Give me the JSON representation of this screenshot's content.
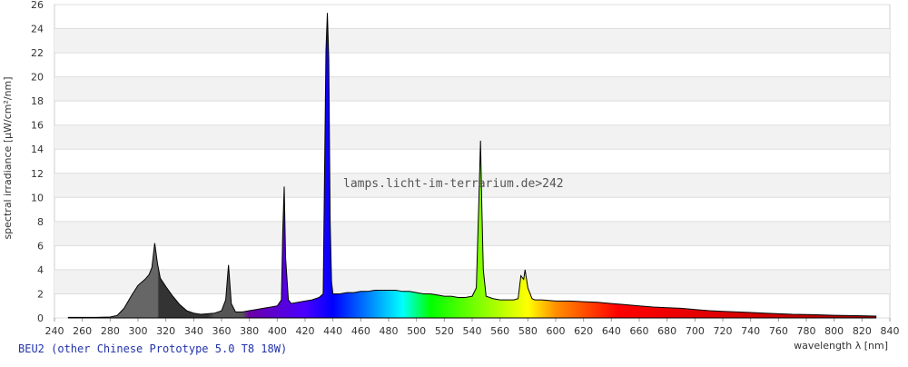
{
  "chart_data": {
    "type": "area",
    "title": "BEU2 (other Chinese Prototype 5.0 T8 18W)",
    "annotation": "lamps.licht-im-terrarium.de>242",
    "x_label": "wavelength λ [nm]",
    "y_label": "spectral irradiance [µW/cm²/nm]",
    "xlim": [
      240,
      840
    ],
    "ylim": [
      0,
      26
    ],
    "xticks": [
      240,
      260,
      280,
      300,
      320,
      340,
      360,
      380,
      400,
      420,
      440,
      460,
      480,
      500,
      520,
      540,
      560,
      580,
      600,
      620,
      640,
      660,
      680,
      700,
      720,
      740,
      760,
      780,
      800,
      820,
      840
    ],
    "yticks": [
      0,
      2,
      4,
      6,
      8,
      10,
      12,
      14,
      16,
      18,
      20,
      22,
      24,
      26
    ],
    "grid": true,
    "series": [
      {
        "name": "BEU2",
        "color": "#000000",
        "x": [
          250,
          260,
          270,
          280,
          285,
          290,
          295,
          300,
          305,
          308,
          310,
          312,
          314,
          316,
          320,
          325,
          330,
          335,
          340,
          345,
          350,
          355,
          360,
          363,
          365,
          367,
          370,
          375,
          380,
          385,
          390,
          395,
          400,
          403,
          404,
          405,
          406,
          408,
          410,
          415,
          420,
          425,
          430,
          433,
          435,
          436,
          437,
          438,
          439,
          440,
          445,
          450,
          455,
          460,
          465,
          470,
          475,
          480,
          485,
          490,
          495,
          500,
          505,
          510,
          515,
          520,
          525,
          530,
          535,
          540,
          543,
          545,
          546,
          547,
          548,
          550,
          555,
          560,
          565,
          570,
          573,
          575,
          577,
          578,
          580,
          583,
          585,
          590,
          600,
          610,
          620,
          630,
          640,
          650,
          660,
          670,
          680,
          690,
          700,
          710,
          720,
          730,
          740,
          750,
          760,
          770,
          780,
          790,
          800,
          810,
          820,
          830
        ],
        "values": [
          0.05,
          0.05,
          0.05,
          0.08,
          0.2,
          0.8,
          1.8,
          2.7,
          3.2,
          3.6,
          4.2,
          6.2,
          4.5,
          3.3,
          2.6,
          1.8,
          1.1,
          0.6,
          0.4,
          0.3,
          0.35,
          0.4,
          0.6,
          1.5,
          4.4,
          1.2,
          0.5,
          0.5,
          0.6,
          0.7,
          0.8,
          0.9,
          1.0,
          1.5,
          7.3,
          10.9,
          5,
          1.5,
          1.2,
          1.3,
          1.4,
          1.5,
          1.7,
          2.0,
          22.2,
          25.3,
          21.5,
          8,
          3,
          2.0,
          2.0,
          2.1,
          2.1,
          2.2,
          2.2,
          2.3,
          2.3,
          2.3,
          2.3,
          2.2,
          2.2,
          2.1,
          2.0,
          2.0,
          1.9,
          1.8,
          1.8,
          1.7,
          1.7,
          1.8,
          2.5,
          10.5,
          14.7,
          9,
          4,
          1.8,
          1.6,
          1.5,
          1.5,
          1.5,
          1.6,
          3.5,
          3.2,
          4.0,
          2.5,
          1.6,
          1.5,
          1.5,
          1.4,
          1.4,
          1.35,
          1.3,
          1.2,
          1.1,
          1.0,
          0.9,
          0.85,
          0.8,
          0.7,
          0.6,
          0.55,
          0.5,
          0.45,
          0.4,
          0.35,
          0.3,
          0.28,
          0.25,
          0.22,
          0.2,
          0.18,
          0.15
        ]
      }
    ]
  }
}
